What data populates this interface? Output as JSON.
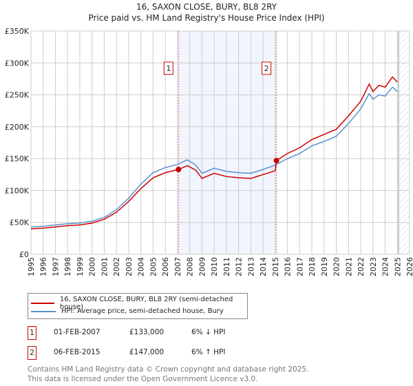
{
  "chart_data": {
    "type": "line",
    "title": "16, SAXON CLOSE, BURY, BL8 2RY",
    "subtitle": "Price paid vs. HM Land Registry's House Price Index (HPI)",
    "xlim": [
      1995,
      2026
    ],
    "ylim": [
      0,
      350000
    ],
    "x_ticks": [
      "1995",
      "1996",
      "1997",
      "1998",
      "1999",
      "2000",
      "2001",
      "2002",
      "2003",
      "2004",
      "2005",
      "2006",
      "2007",
      "2008",
      "2009",
      "2010",
      "2011",
      "2012",
      "2013",
      "2014",
      "2015",
      "2016",
      "2017",
      "2018",
      "2019",
      "2020",
      "2021",
      "2022",
      "2023",
      "2024",
      "2025",
      "2026"
    ],
    "y_ticks": [
      {
        "v": 0,
        "label": "£0"
      },
      {
        "v": 50000,
        "label": "£50K"
      },
      {
        "v": 100000,
        "label": "£100K"
      },
      {
        "v": 150000,
        "label": "£150K"
      },
      {
        "v": 200000,
        "label": "£200K"
      },
      {
        "v": 250000,
        "label": "£250K"
      },
      {
        "v": 300000,
        "label": "£300K"
      },
      {
        "v": 350000,
        "label": "£350K"
      }
    ],
    "grid": true,
    "shaded_period": [
      2007.08,
      2015.1
    ],
    "forecast_hatch_from": 2025.1,
    "series": [
      {
        "name": "16, SAXON CLOSE, BURY, BL8 2RY (semi-detached house)",
        "color": "#cc0000",
        "x": [
          1995,
          1996,
          1997,
          1998,
          1999,
          2000,
          2001,
          2002,
          2003,
          2004,
          2005,
          2006,
          2007.08,
          2007.8,
          2008.5,
          2009,
          2010,
          2011,
          2012,
          2013,
          2014,
          2015.0,
          2015.1,
          2016,
          2017,
          2018,
          2019,
          2020,
          2021,
          2022,
          2022.7,
          2023,
          2023.5,
          2024,
          2024.6,
          2025
        ],
        "y": [
          40000,
          41000,
          43000,
          45000,
          46000,
          49000,
          55000,
          66000,
          83000,
          103000,
          120000,
          128000,
          133000,
          139000,
          132000,
          119000,
          127000,
          122000,
          120000,
          119000,
          125000,
          131000,
          147000,
          158000,
          167000,
          180000,
          188000,
          196000,
          217000,
          240000,
          267000,
          255000,
          265000,
          262000,
          278000,
          270000
        ]
      },
      {
        "name": "HPI: Average price, semi-detached house, Bury",
        "color": "#5b8fd0",
        "x": [
          1995,
          1996,
          1997,
          1998,
          1999,
          2000,
          2001,
          2002,
          2003,
          2004,
          2005,
          2006,
          2007,
          2007.8,
          2008.5,
          2009,
          2010,
          2011,
          2012,
          2013,
          2014,
          2015,
          2016,
          2017,
          2018,
          2019,
          2020,
          2021,
          2022,
          2022.7,
          2023,
          2023.5,
          2024,
          2024.6,
          2025
        ],
        "y": [
          43000,
          44000,
          46000,
          48000,
          49000,
          52000,
          58000,
          70000,
          88000,
          110000,
          128000,
          136000,
          141000,
          148000,
          140000,
          127000,
          135000,
          130000,
          128000,
          127000,
          133000,
          140000,
          150000,
          158000,
          170000,
          177000,
          185000,
          205000,
          228000,
          252000,
          243000,
          250000,
          248000,
          262000,
          255000
        ]
      }
    ],
    "annotations": [
      {
        "label": "1",
        "x": 2007.08,
        "y": 133000
      },
      {
        "label": "2",
        "x": 2015.1,
        "y": 147000
      }
    ]
  },
  "legend": {
    "items": [
      "16, SAXON CLOSE, BURY, BL8 2RY (semi-detached house)",
      "HPI: Average price, semi-detached house, Bury"
    ]
  },
  "transactions": [
    {
      "num": "1",
      "date": "01-FEB-2007",
      "price": "£133,000",
      "hpi": "6% ↓ HPI"
    },
    {
      "num": "2",
      "date": "06-FEB-2015",
      "price": "£147,000",
      "hpi": "6% ↑ HPI"
    }
  ],
  "footer": {
    "line1": "Contains HM Land Registry data © Crown copyright and database right 2025.",
    "line2": "This data is licensed under the Open Government Licence v3.0."
  }
}
